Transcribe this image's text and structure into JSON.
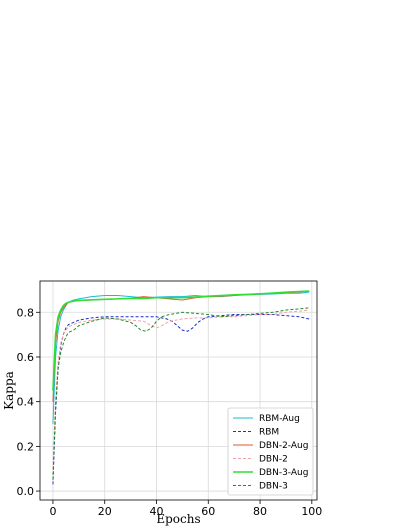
{
  "chart_data": {
    "type": "line",
    "xlabel": "Epochs",
    "ylabel": "Kappa",
    "xlim": [
      -5,
      102
    ],
    "ylim": [
      -0.04,
      0.94
    ],
    "xticks": [
      0,
      20,
      40,
      60,
      80,
      100
    ],
    "yticks": [
      0.0,
      0.2,
      0.4,
      0.6,
      0.8
    ],
    "xtick_labels": [
      "0",
      "20",
      "40",
      "60",
      "80",
      "100"
    ],
    "ytick_labels": [
      "0.0",
      "0.2",
      "0.4",
      "0.6",
      "0.8"
    ],
    "grid": true,
    "legend_position": "lower-right",
    "series": [
      {
        "name": "RBM-Aug",
        "color": "#17becf",
        "dash": "solid",
        "width": 1.0,
        "x": [
          0,
          1,
          2,
          3,
          4,
          5,
          6,
          8,
          10,
          15,
          20,
          25,
          30,
          35,
          40,
          45,
          50,
          55,
          60,
          65,
          70,
          75,
          80,
          85,
          90,
          95,
          99
        ],
        "y": [
          0.3,
          0.6,
          0.72,
          0.78,
          0.81,
          0.83,
          0.845,
          0.855,
          0.86,
          0.87,
          0.875,
          0.875,
          0.87,
          0.865,
          0.868,
          0.87,
          0.87,
          0.875,
          0.87,
          0.87,
          0.875,
          0.878,
          0.88,
          0.882,
          0.885,
          0.885,
          0.89
        ]
      },
      {
        "name": "RBM",
        "color": "#1f2fd0",
        "dash": "dashed",
        "width": 1.0,
        "x": [
          0,
          1,
          2,
          3,
          4,
          5,
          6,
          8,
          10,
          15,
          20,
          25,
          30,
          35,
          40,
          42,
          44,
          46,
          48,
          50,
          52,
          54,
          56,
          58,
          60,
          65,
          70,
          75,
          80,
          85,
          90,
          95,
          99
        ],
        "y": [
          0.03,
          0.35,
          0.55,
          0.65,
          0.7,
          0.73,
          0.745,
          0.755,
          0.765,
          0.775,
          0.78,
          0.78,
          0.78,
          0.78,
          0.78,
          0.775,
          0.77,
          0.76,
          0.74,
          0.72,
          0.715,
          0.73,
          0.755,
          0.77,
          0.78,
          0.785,
          0.79,
          0.79,
          0.79,
          0.79,
          0.785,
          0.78,
          0.77
        ]
      },
      {
        "name": "DBN-2-Aug",
        "color": "#d95f2b",
        "dash": "solid",
        "width": 1.0,
        "x": [
          0,
          1,
          2,
          3,
          4,
          5,
          6,
          8,
          10,
          15,
          20,
          25,
          30,
          35,
          40,
          45,
          50,
          55,
          60,
          65,
          70,
          75,
          80,
          85,
          90,
          95,
          99
        ],
        "y": [
          0.4,
          0.66,
          0.76,
          0.8,
          0.82,
          0.835,
          0.845,
          0.85,
          0.852,
          0.855,
          0.858,
          0.86,
          0.862,
          0.87,
          0.865,
          0.86,
          0.855,
          0.865,
          0.87,
          0.872,
          0.875,
          0.88,
          0.882,
          0.885,
          0.888,
          0.89,
          0.895
        ]
      },
      {
        "name": "DBN-2",
        "color": "#f2a0a8",
        "dash": "dashed",
        "width": 1.0,
        "x": [
          0,
          1,
          2,
          3,
          4,
          5,
          6,
          8,
          10,
          15,
          20,
          25,
          30,
          35,
          38,
          40,
          42,
          45,
          50,
          55,
          60,
          65,
          70,
          75,
          80,
          85,
          90,
          95,
          99
        ],
        "y": [
          0.1,
          0.4,
          0.58,
          0.66,
          0.7,
          0.72,
          0.735,
          0.745,
          0.755,
          0.765,
          0.77,
          0.77,
          0.765,
          0.76,
          0.74,
          0.73,
          0.74,
          0.76,
          0.77,
          0.775,
          0.775,
          0.78,
          0.78,
          0.785,
          0.79,
          0.79,
          0.8,
          0.805,
          0.81
        ]
      },
      {
        "name": "DBN-3-Aug",
        "color": "#33dd33",
        "dash": "solid",
        "width": 1.6,
        "x": [
          0,
          1,
          2,
          3,
          4,
          5,
          6,
          8,
          10,
          15,
          20,
          25,
          30,
          35,
          40,
          45,
          50,
          55,
          60,
          65,
          70,
          75,
          80,
          85,
          90,
          95,
          99
        ],
        "y": [
          0.45,
          0.7,
          0.78,
          0.81,
          0.83,
          0.84,
          0.845,
          0.85,
          0.853,
          0.856,
          0.858,
          0.86,
          0.862,
          0.862,
          0.865,
          0.865,
          0.865,
          0.868,
          0.872,
          0.875,
          0.878,
          0.88,
          0.883,
          0.886,
          0.89,
          0.893,
          0.895
        ]
      },
      {
        "name": "DBN-3",
        "color": "#228b22",
        "dash": "dashed",
        "width": 1.0,
        "x": [
          0,
          1,
          2,
          3,
          4,
          5,
          6,
          8,
          10,
          15,
          20,
          25,
          30,
          32,
          34,
          36,
          38,
          40,
          42,
          45,
          50,
          55,
          60,
          65,
          70,
          75,
          80,
          85,
          90,
          95,
          99
        ],
        "y": [
          0.05,
          0.38,
          0.55,
          0.62,
          0.66,
          0.69,
          0.71,
          0.72,
          0.74,
          0.76,
          0.775,
          0.77,
          0.755,
          0.74,
          0.72,
          0.715,
          0.73,
          0.76,
          0.78,
          0.79,
          0.8,
          0.795,
          0.79,
          0.78,
          0.785,
          0.79,
          0.795,
          0.8,
          0.81,
          0.815,
          0.82
        ]
      }
    ]
  }
}
